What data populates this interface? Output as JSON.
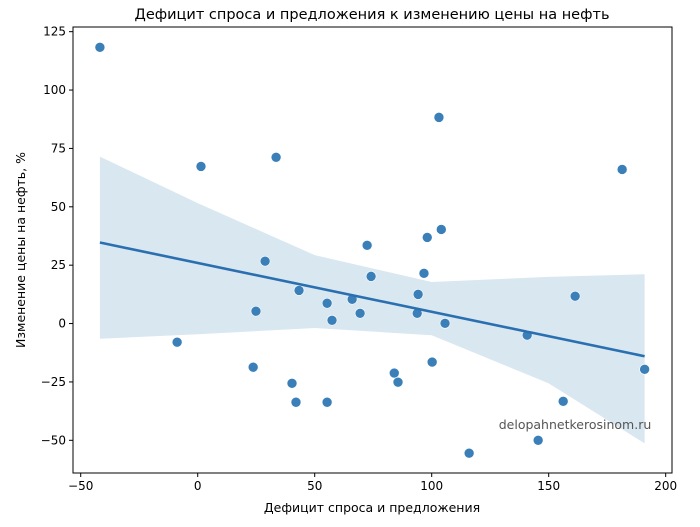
{
  "chart_data": {
    "type": "scatter",
    "title": "Дефицит спроса и предложения к изменению цены на нефть",
    "xlabel": "Дефицит спроса и предложения",
    "ylabel": "Изменение цены на нефть, %",
    "xlim": [
      -53.3,
      202.7
    ],
    "ylim": [
      -64,
      127
    ],
    "xticks": [
      -50,
      0,
      50,
      100,
      150,
      200
    ],
    "yticks": [
      -50,
      -25,
      0,
      25,
      50,
      75,
      100,
      125
    ],
    "grid": false,
    "point_color": "#3a7fb8",
    "line_color": "#2a6fb0",
    "band_color": "#d9e7f1",
    "points": [
      [
        -41.8,
        118.3
      ],
      [
        1.4,
        67.3
      ],
      [
        33.5,
        71.2
      ],
      [
        103.1,
        88.3
      ],
      [
        181.4,
        66.0
      ],
      [
        98.1,
        36.9
      ],
      [
        104.1,
        40.3
      ],
      [
        72.4,
        33.5
      ],
      [
        28.8,
        26.7
      ],
      [
        74.1,
        20.2
      ],
      [
        96.7,
        21.5
      ],
      [
        43.3,
        14.2
      ],
      [
        55.3,
        8.7
      ],
      [
        66.0,
        10.4
      ],
      [
        24.9,
        5.3
      ],
      [
        57.4,
        1.4
      ],
      [
        69.4,
        4.4
      ],
      [
        94.2,
        12.5
      ],
      [
        93.8,
        4.4
      ],
      [
        105.7,
        0.1
      ],
      [
        161.3,
        11.7
      ],
      [
        140.8,
        -5.0
      ],
      [
        -8.8,
        -8.0
      ],
      [
        23.7,
        -18.7
      ],
      [
        100.2,
        -16.5
      ],
      [
        84.0,
        -21.2
      ],
      [
        85.6,
        -25.1
      ],
      [
        40.3,
        -25.6
      ],
      [
        42.0,
        -33.7
      ],
      [
        55.3,
        -33.7
      ],
      [
        156.2,
        -33.3
      ],
      [
        145.5,
        -50.0
      ],
      [
        116.0,
        -55.5
      ],
      [
        191.0,
        -19.6
      ]
    ],
    "regression_line": [
      [
        -41.8,
        34.7
      ],
      [
        191.0,
        -14.0
      ]
    ],
    "confidence_band": {
      "x": [
        -41.8,
        0,
        50,
        100,
        150,
        191.0
      ],
      "upper": [
        71.5,
        51.6,
        29.3,
        17.8,
        20.0,
        21.1
      ],
      "lower": [
        -6.5,
        -4.6,
        -1.9,
        -5.0,
        -25.6,
        -51.3
      ]
    },
    "watermark": "delopahnetkerosinom.ru"
  }
}
